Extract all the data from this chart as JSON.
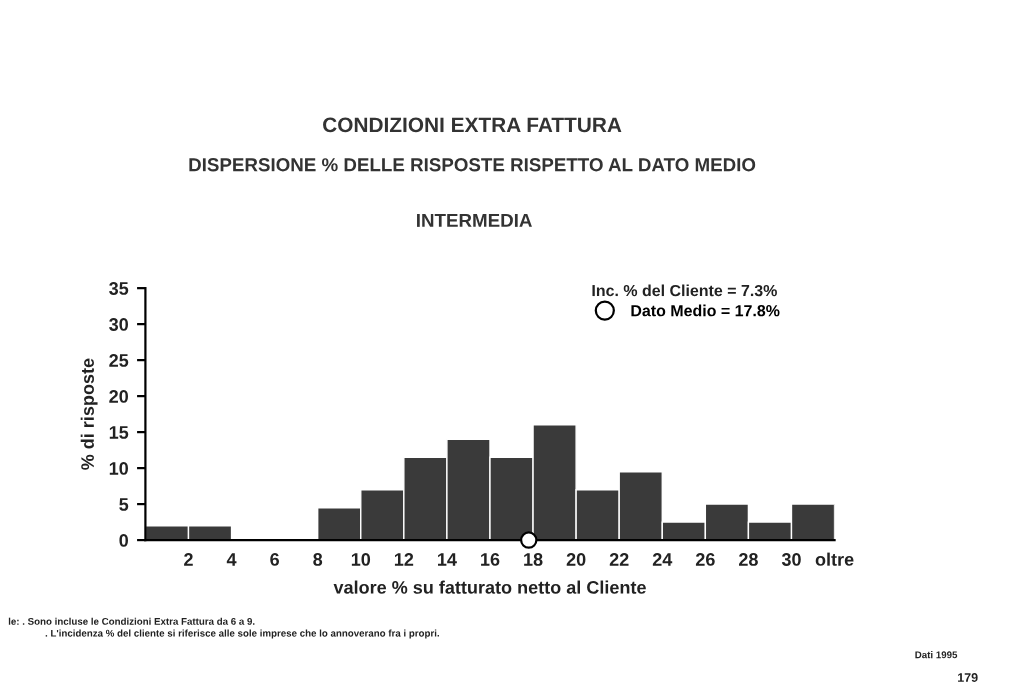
{
  "chart_data": {
    "type": "histogram",
    "title": "CONDIZIONI EXTRA FATTURA",
    "subtitle": "DISPERSIONE % DELLE RISPOSTE RISPETTO AL DATO MEDIO",
    "xlabel": "valore % su fatturato netto al Cliente",
    "ylabel": "% di risposte",
    "bins": [
      0,
      2,
      4,
      6,
      8,
      10,
      12,
      14,
      16,
      18,
      20,
      22,
      24,
      26,
      28,
      30,
      32
    ],
    "values": [
      2.0,
      2.0,
      0,
      0,
      4.5,
      7.0,
      11.5,
      14.0,
      11.5,
      16.0,
      7.0,
      9.5,
      2.5,
      5.0,
      2.5,
      5.0
    ],
    "color": "#3a3a3a",
    "series": [
      {
        "name": "Dato Medio = 17.8%",
        "type": "scatter",
        "x": [
          17.8
        ],
        "values": [
          0
        ],
        "color": "#ffffff",
        "marker": "circle"
      }
    ],
    "xlim": [
      0,
      32
    ],
    "xticks": [
      2,
      4,
      6,
      8,
      10,
      12,
      14,
      16,
      18,
      20,
      22,
      24,
      26,
      28,
      30,
      {
        "value": 32,
        "label": "oltre"
      }
    ],
    "ylim": [
      0,
      35
    ],
    "yticks": [
      0,
      5,
      10,
      15,
      20,
      25,
      30,
      35
    ],
    "legend": "top right",
    "annotations": [
      "INTERMEDIA",
      "Inc. % del Cliente = 7.3%",
      "le: . Sono incluse le Condizioni Extra Fattura da 6 a 9.",
      ". L'incidenza % del cliente si riferisce alle sole imprese che lo annoverano fra i propri.",
      "Dati 1995",
      "179"
    ]
  }
}
